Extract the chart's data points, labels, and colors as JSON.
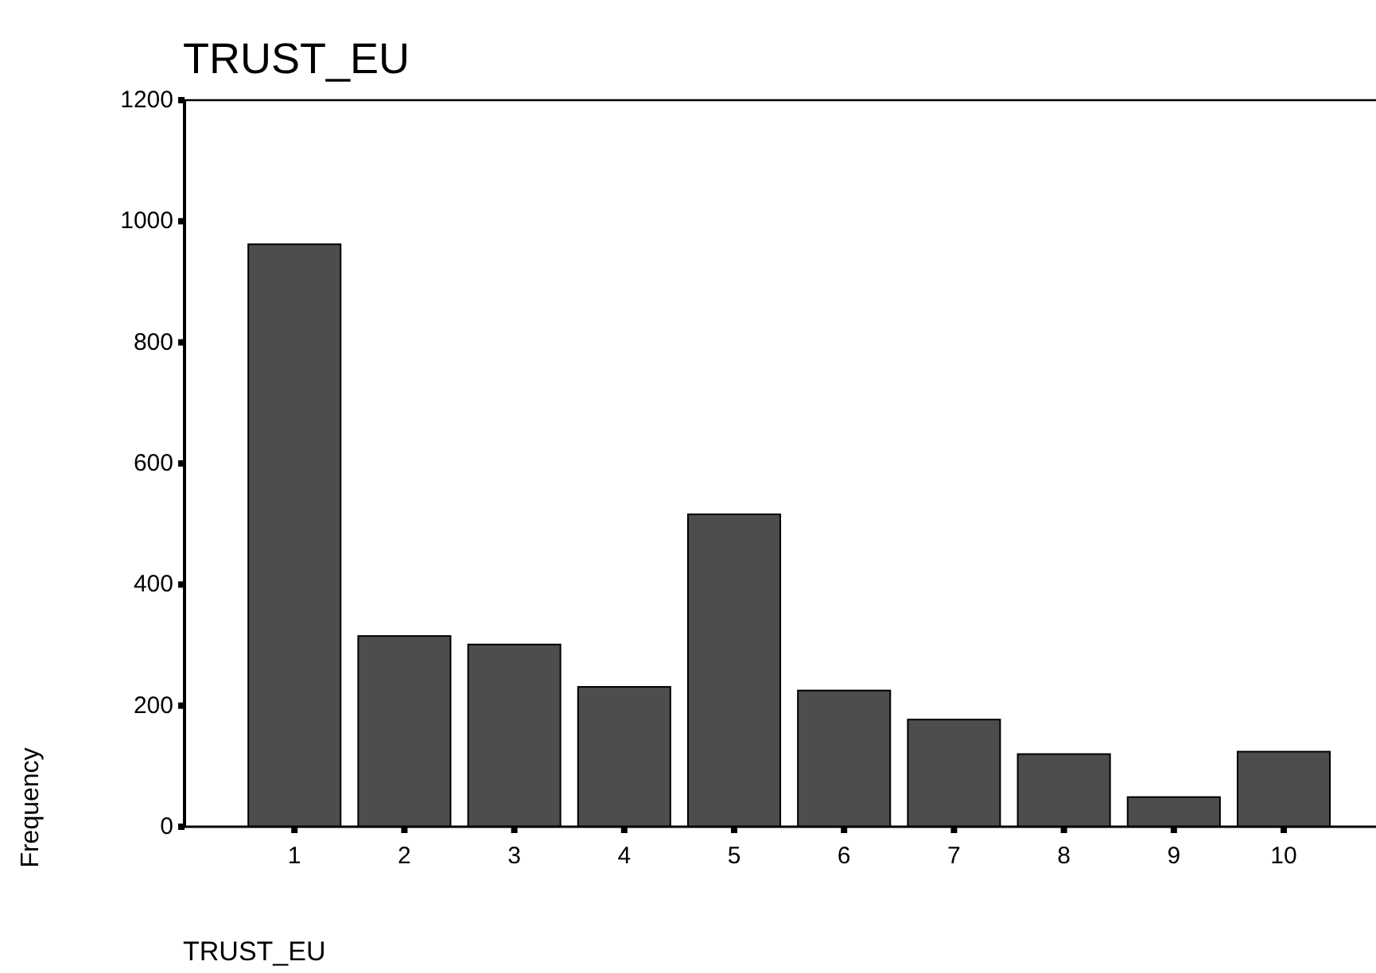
{
  "chart_data": {
    "type": "bar",
    "title": "TRUST_EU",
    "xlabel": "TRUST_EU",
    "ylabel": "Frequency",
    "categories": [
      "1",
      "2",
      "3",
      "4",
      "5",
      "6",
      "7",
      "8",
      "9",
      "10"
    ],
    "values": [
      962,
      315,
      301,
      231,
      516,
      225,
      177,
      120,
      49,
      124
    ],
    "color": "#4d4d4d",
    "ylim": [
      0,
      1200
    ],
    "yticks": [
      0,
      200,
      400,
      600,
      800,
      1000,
      1200
    ],
    "grid": false
  }
}
